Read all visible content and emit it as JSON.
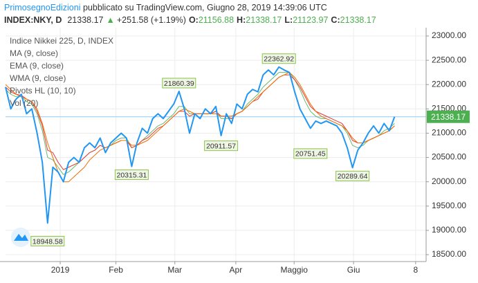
{
  "header": {
    "author": "PrimosegnoEdizioni",
    "published": " pubblicato su TradingView.com, Giugno 28, 2019 14:39:06 UTC",
    "symbol": "INDEX:NKY, D",
    "last": "21338.17",
    "arrow": "▲",
    "change": "+251.58 (+1.19%)",
    "open_label": "O:",
    "open": "21156.88",
    "high_label": "H:",
    "high": "21338.17",
    "low_label": "L:",
    "low": "21123.97",
    "close_label": "C:",
    "close": "21338.17"
  },
  "chart_data": {
    "type": "line",
    "legend": [
      "Indice Nikkei 225, D, INDEX",
      "MA (9, close)",
      "EMA (9, close)",
      "WMA (9, close)",
      "Pivots HL (10, 10)",
      "Vol (20)"
    ],
    "xlim": [
      0,
      80
    ],
    "ylim": [
      18358,
      23171
    ],
    "xticks": [
      {
        "value": 10.4,
        "label": "2019"
      },
      {
        "value": 21,
        "label": "Feb"
      },
      {
        "value": 32.2,
        "label": "Mar"
      },
      {
        "value": 43.8,
        "label": "Apr"
      },
      {
        "value": 54.9,
        "label": "Maggio"
      },
      {
        "value": 66.2,
        "label": "Giu"
      },
      {
        "value": 78,
        "label": "8"
      }
    ],
    "yticks": [
      {
        "value": 23000,
        "label": "23000.00"
      },
      {
        "value": 22500,
        "label": "22500.00"
      },
      {
        "value": 22000,
        "label": "22000.00"
      },
      {
        "value": 21500,
        "label": "21500.00"
      },
      {
        "value": 21000,
        "label": "21000.00"
      },
      {
        "value": 20500,
        "label": "20500.00"
      },
      {
        "value": 20000,
        "label": "20000.00"
      },
      {
        "value": 19500,
        "label": "19500.00"
      },
      {
        "value": 19000,
        "label": "19000.00"
      },
      {
        "value": 18500,
        "label": "18500.00"
      }
    ],
    "grid": true,
    "last_price": 21338.17,
    "last_color": "#4caf50",
    "series": [
      {
        "name": "Indice Nikkei 225, D, INDEX",
        "color": "#2196f3",
        "width": 2,
        "values": [
          21950,
          21500,
          21700,
          21800,
          21400,
          21500,
          21000,
          20400,
          19150,
          20300,
          20200,
          20000,
          20400,
          20500,
          20400,
          20700,
          20800,
          20700,
          20900,
          20600,
          20800,
          20900,
          21000,
          20900,
          20315,
          20800,
          21100,
          21000,
          21300,
          21400,
          21300,
          21450,
          21600,
          21860,
          21500,
          21000,
          21400,
          21300,
          21500,
          21400,
          21550,
          20950,
          21400,
          21200,
          21600,
          21500,
          21800,
          21900,
          21850,
          22200,
          22300,
          22200,
          22362,
          22300,
          22250,
          21850,
          21500,
          21300,
          21100,
          21250,
          21200,
          21250,
          21200,
          21150,
          21000,
          20700,
          20290,
          20650,
          20800,
          21000,
          21150,
          21000,
          21200,
          21050,
          21338.17
        ]
      },
      {
        "name": "MA (9, close)",
        "color": "#ef6c00",
        "width": 1,
        "values": [
          22000,
          21900,
          21800,
          21750,
          21700,
          21650,
          21500,
          21200,
          20800,
          20500,
          20200,
          20000,
          20000,
          20100,
          20200,
          20300,
          20450,
          20550,
          20650,
          20700,
          20750,
          20800,
          20850,
          20850,
          20750,
          20750,
          20800,
          20850,
          20950,
          21050,
          21150,
          21250,
          21350,
          21450,
          21500,
          21450,
          21400,
          21400,
          21400,
          21400,
          21400,
          21350,
          21350,
          21350,
          21400,
          21450,
          21550,
          21650,
          21750,
          21850,
          21950,
          22050,
          22150,
          22200,
          22250,
          22150,
          22000,
          21800,
          21600,
          21450,
          21350,
          21300,
          21250,
          21200,
          21150,
          21050,
          20900,
          20800,
          20800,
          20850,
          20900,
          20950,
          21000,
          21050,
          21150
        ]
      },
      {
        "name": "EMA (9, close)",
        "color": "#e53935",
        "width": 1,
        "values": [
          21950,
          21850,
          21800,
          21780,
          21700,
          21650,
          21450,
          21150,
          20650,
          20600,
          20400,
          20250,
          20300,
          20350,
          20400,
          20500,
          20600,
          20650,
          20750,
          20700,
          20750,
          20800,
          20850,
          20850,
          20700,
          20750,
          20850,
          20900,
          21000,
          21100,
          21150,
          21250,
          21350,
          21450,
          21450,
          21350,
          21400,
          21400,
          21400,
          21400,
          21450,
          21350,
          21350,
          21300,
          21400,
          21450,
          21550,
          21650,
          21700,
          21850,
          21950,
          22050,
          22150,
          22200,
          22200,
          22100,
          21950,
          21750,
          21550,
          21450,
          21400,
          21350,
          21300,
          21250,
          21200,
          21050,
          20850,
          20800,
          20800,
          20850,
          20900,
          20950,
          21000,
          21050,
          21150
        ]
      },
      {
        "name": "WMA (9, close)",
        "color": "#66bb6a",
        "width": 1,
        "values": [
          21900,
          21800,
          21750,
          21750,
          21650,
          21600,
          21400,
          21050,
          20500,
          20450,
          20300,
          20150,
          20200,
          20300,
          20400,
          20500,
          20600,
          20650,
          20750,
          20700,
          20750,
          20850,
          20900,
          20900,
          20700,
          20750,
          20850,
          20950,
          21050,
          21150,
          21200,
          21300,
          21400,
          21550,
          21550,
          21400,
          21400,
          21400,
          21400,
          21400,
          21450,
          21300,
          21300,
          21300,
          21400,
          21450,
          21600,
          21700,
          21800,
          21950,
          22050,
          22150,
          22250,
          22250,
          22250,
          22100,
          21900,
          21650,
          21450,
          21350,
          21300,
          21300,
          21250,
          21200,
          21150,
          21000,
          20750,
          20700,
          20750,
          20850,
          20900,
          20950,
          21050,
          21100,
          21200
        ]
      }
    ],
    "pivot_highs": [
      {
        "x": 33,
        "value": 21860.39
      },
      {
        "x": 52,
        "value": 22362.92
      }
    ],
    "pivot_lows": [
      {
        "x": 8,
        "value": 18948.58
      },
      {
        "x": 24,
        "value": 20315.31
      },
      {
        "x": 41,
        "value": 20911.57
      },
      {
        "x": 58,
        "value": 20751.45
      },
      {
        "x": 66,
        "value": 20289.64
      }
    ]
  }
}
